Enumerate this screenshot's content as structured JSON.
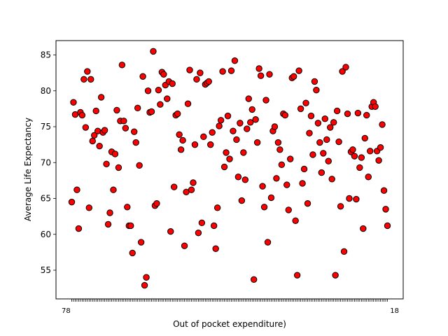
{
  "chart_data": {
    "type": "scatter",
    "title": "",
    "xlabel": "Out of pocket expenditure)",
    "ylabel": "Average Life Expectancy",
    "ylim": [
      51,
      87
    ],
    "yticks": [
      55,
      60,
      65,
      70,
      75,
      80,
      85
    ],
    "x_is_categorical": true,
    "x_first_tick_label": "78",
    "x_last_tick_label": "18",
    "grid": false,
    "marker_color": "#ff0000",
    "marker_edge_color": "#000000",
    "y": [
      64.5,
      78.4,
      76.7,
      66.2,
      60.8,
      77.0,
      76.6,
      81.6,
      74.9,
      82.7,
      63.7,
      81.6,
      73.0,
      73.8,
      77.2,
      74.4,
      72.3,
      79.1,
      74.2,
      74.5,
      69.8,
      61.4,
      63.0,
      71.5,
      66.2,
      71.2,
      77.3,
      69.3,
      75.8,
      83.6,
      75.8,
      74.8,
      63.8,
      61.2,
      61.2,
      57.4,
      74.3,
      72.8,
      77.6,
      69.6,
      58.9,
      82.0,
      52.9,
      54.0,
      80.0,
      77.0,
      77.1,
      85.5,
      64.0,
      64.3,
      80.1,
      78.1,
      82.6,
      82.3,
      80.8,
      78.9,
      81.3,
      60.4,
      81.0,
      66.6,
      76.6,
      76.8,
      73.9,
      71.8,
      73.1,
      58.4,
      65.9,
      78.2,
      82.9,
      66.2,
      67.2,
      72.5,
      81.6,
      60.2,
      82.5,
      61.6,
      73.6,
      80.9,
      81.1,
      81.3,
      72.5,
      74.2,
      61.2,
      58.0,
      63.7,
      75.1,
      75.9,
      82.7,
      69.4,
      71.4,
      76.5,
      70.5,
      82.8,
      74.4,
      84.2,
      73.2,
      68.0,
      75.5,
      64.7,
      71.4,
      67.6,
      74.7,
      78.9,
      75.6,
      77.4,
      53.7,
      76.0,
      72.8,
      83.1,
      82.1,
      66.7,
      63.8,
      78.7,
      58.9,
      82.3,
      65.1,
      74.4,
      75.0,
      67.8,
      72.8,
      71.8,
      69.7,
      76.8,
      76.6,
      66.9,
      63.4,
      70.5,
      81.8,
      82.0,
      61.9,
      54.3,
      82.8,
      77.5,
      67.1,
      69.1,
      78.3,
      64.3,
      74.1,
      76.5,
      71.1,
      81.3,
      80.1,
      75.5,
      72.8,
      68.6,
      71.3,
      76.1,
      73.2,
      70.2,
      74.9,
      67.7,
      75.6,
      54.3,
      77.2,
      72.9,
      63.9,
      82.7,
      57.6,
      83.3,
      76.8,
      65.0,
      71.5,
      71.8,
      70.9,
      64.9,
      76.9,
      69.3,
      70.7,
      60.8,
      73.4,
      76.6,
      68.0,
      71.6,
      77.8,
      78.4,
      77.8,
      71.6,
      70.3,
      72.1,
      75.3,
      66.1,
      63.5,
      61.2
    ]
  }
}
